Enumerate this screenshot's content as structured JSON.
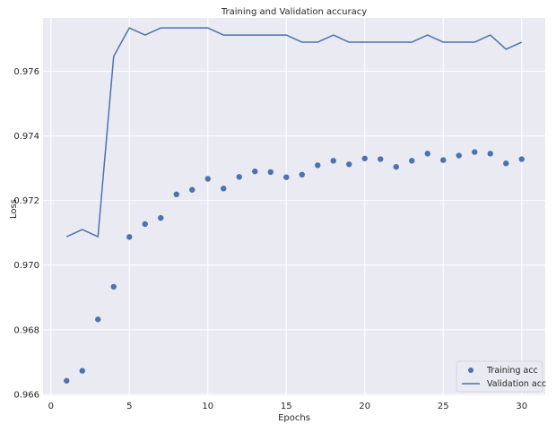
{
  "chart_data": {
    "type": "line",
    "title": "Training and Validation accuracy",
    "xlabel": "Epochs",
    "ylabel": "Loss",
    "xlim": [
      -0.5,
      31.5
    ],
    "ylim": [
      0.96597,
      0.97765
    ],
    "xticks": [
      0,
      5,
      10,
      15,
      20,
      25,
      30
    ],
    "yticks": [
      0.966,
      0.968,
      0.97,
      0.972,
      0.974,
      0.976
    ],
    "grid": true,
    "legend_position": "lower-right",
    "colors": {
      "background": "#eaeaf2",
      "grid": "#ffffff",
      "series": "#4c72b0"
    },
    "series": [
      {
        "name": "Training acc",
        "style": "scatter",
        "x": [
          1,
          2,
          3,
          4,
          5,
          6,
          7,
          8,
          9,
          10,
          11,
          12,
          13,
          14,
          15,
          16,
          17,
          18,
          19,
          20,
          21,
          22,
          23,
          24,
          25,
          26,
          27,
          28,
          29,
          30
        ],
        "values": [
          0.96642,
          0.96673,
          0.96832,
          0.96933,
          0.97087,
          0.97127,
          0.97146,
          0.97219,
          0.97233,
          0.97267,
          0.97237,
          0.97273,
          0.9729,
          0.97288,
          0.97272,
          0.9728,
          0.97309,
          0.97323,
          0.97312,
          0.9733,
          0.97328,
          0.97304,
          0.97323,
          0.97345,
          0.97325,
          0.97339,
          0.9735,
          0.97345,
          0.97315,
          0.97328
        ]
      },
      {
        "name": "Validation acc",
        "style": "line",
        "x": [
          1,
          2,
          3,
          4,
          5,
          6,
          7,
          8,
          9,
          10,
          11,
          12,
          13,
          14,
          15,
          16,
          17,
          18,
          19,
          20,
          21,
          22,
          23,
          24,
          25,
          26,
          27,
          28,
          29,
          30
        ],
        "values": [
          0.97088,
          0.9711,
          0.97088,
          0.97646,
          0.97734,
          0.97712,
          0.97734,
          0.97734,
          0.97734,
          0.97734,
          0.97712,
          0.97712,
          0.97712,
          0.97712,
          0.97712,
          0.9769,
          0.9769,
          0.97712,
          0.9769,
          0.9769,
          0.9769,
          0.9769,
          0.9769,
          0.97712,
          0.9769,
          0.9769,
          0.9769,
          0.97712,
          0.97668,
          0.9769
        ]
      }
    ]
  }
}
